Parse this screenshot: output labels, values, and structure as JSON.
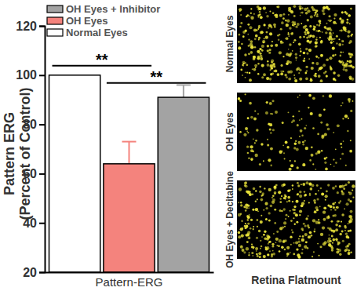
{
  "chart_data": {
    "type": "bar",
    "y_label": [
      "Pattern ERG",
      "(Percent of Control)"
    ],
    "categories": [
      "Pattern-ERG"
    ],
    "series": [
      {
        "name": "Normal Eyes",
        "color": "#ffffff",
        "values": [
          100
        ]
      },
      {
        "name": "OH Eyes",
        "color": "#f4837d",
        "values": [
          64
        ],
        "errors": [
          9
        ]
      },
      {
        "name": "OH Eyes + Inhibitor",
        "color": "#a3a3a3",
        "values": [
          91
        ],
        "errors": [
          5
        ]
      }
    ],
    "ylim": [
      20,
      120
    ],
    "yticks": [
      20,
      40,
      60,
      80,
      100,
      120
    ],
    "legend": "top",
    "annotations": [
      {
        "text": "**",
        "between": [
          "Normal Eyes",
          "OH Eyes"
        ]
      },
      {
        "text": "**",
        "between": [
          "OH Eyes",
          "OH Eyes + Inhibitor"
        ]
      }
    ]
  },
  "side_panels": {
    "title": "Retina Flatmount",
    "panels": [
      "Normal Eyes",
      "OH Eyes",
      "OH Eyes + Decitabine"
    ]
  }
}
